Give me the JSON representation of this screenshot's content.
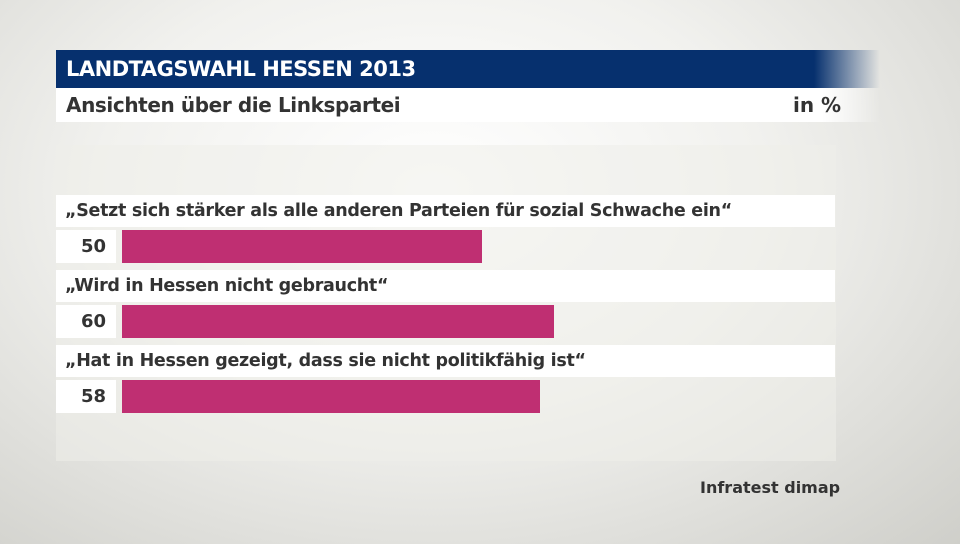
{
  "header": {
    "title": "LANDTAGSWAHL HESSEN 2013",
    "subtitle": "Ansichten über die Linkspartei",
    "unit": "in %"
  },
  "chart_data": {
    "type": "bar",
    "orientation": "horizontal",
    "title": "Ansichten über die Linkspartei",
    "unit": "in %",
    "categories": [
      "„Setzt sich stärker als alle anderen Parteien für sozial Schwache ein“",
      "„Wird in Hessen nicht gebraucht“",
      "„Hat in Hessen gezeigt, dass sie nicht politikfähig ist“"
    ],
    "values": [
      50,
      60,
      58
    ],
    "value_labels": [
      "50",
      "60",
      "58"
    ],
    "bar_color": "#bf2f72",
    "grid": false
  },
  "colors": {
    "title_bar": "#06306e",
    "bar": "#bf2f72"
  },
  "source": "Infratest dimap"
}
